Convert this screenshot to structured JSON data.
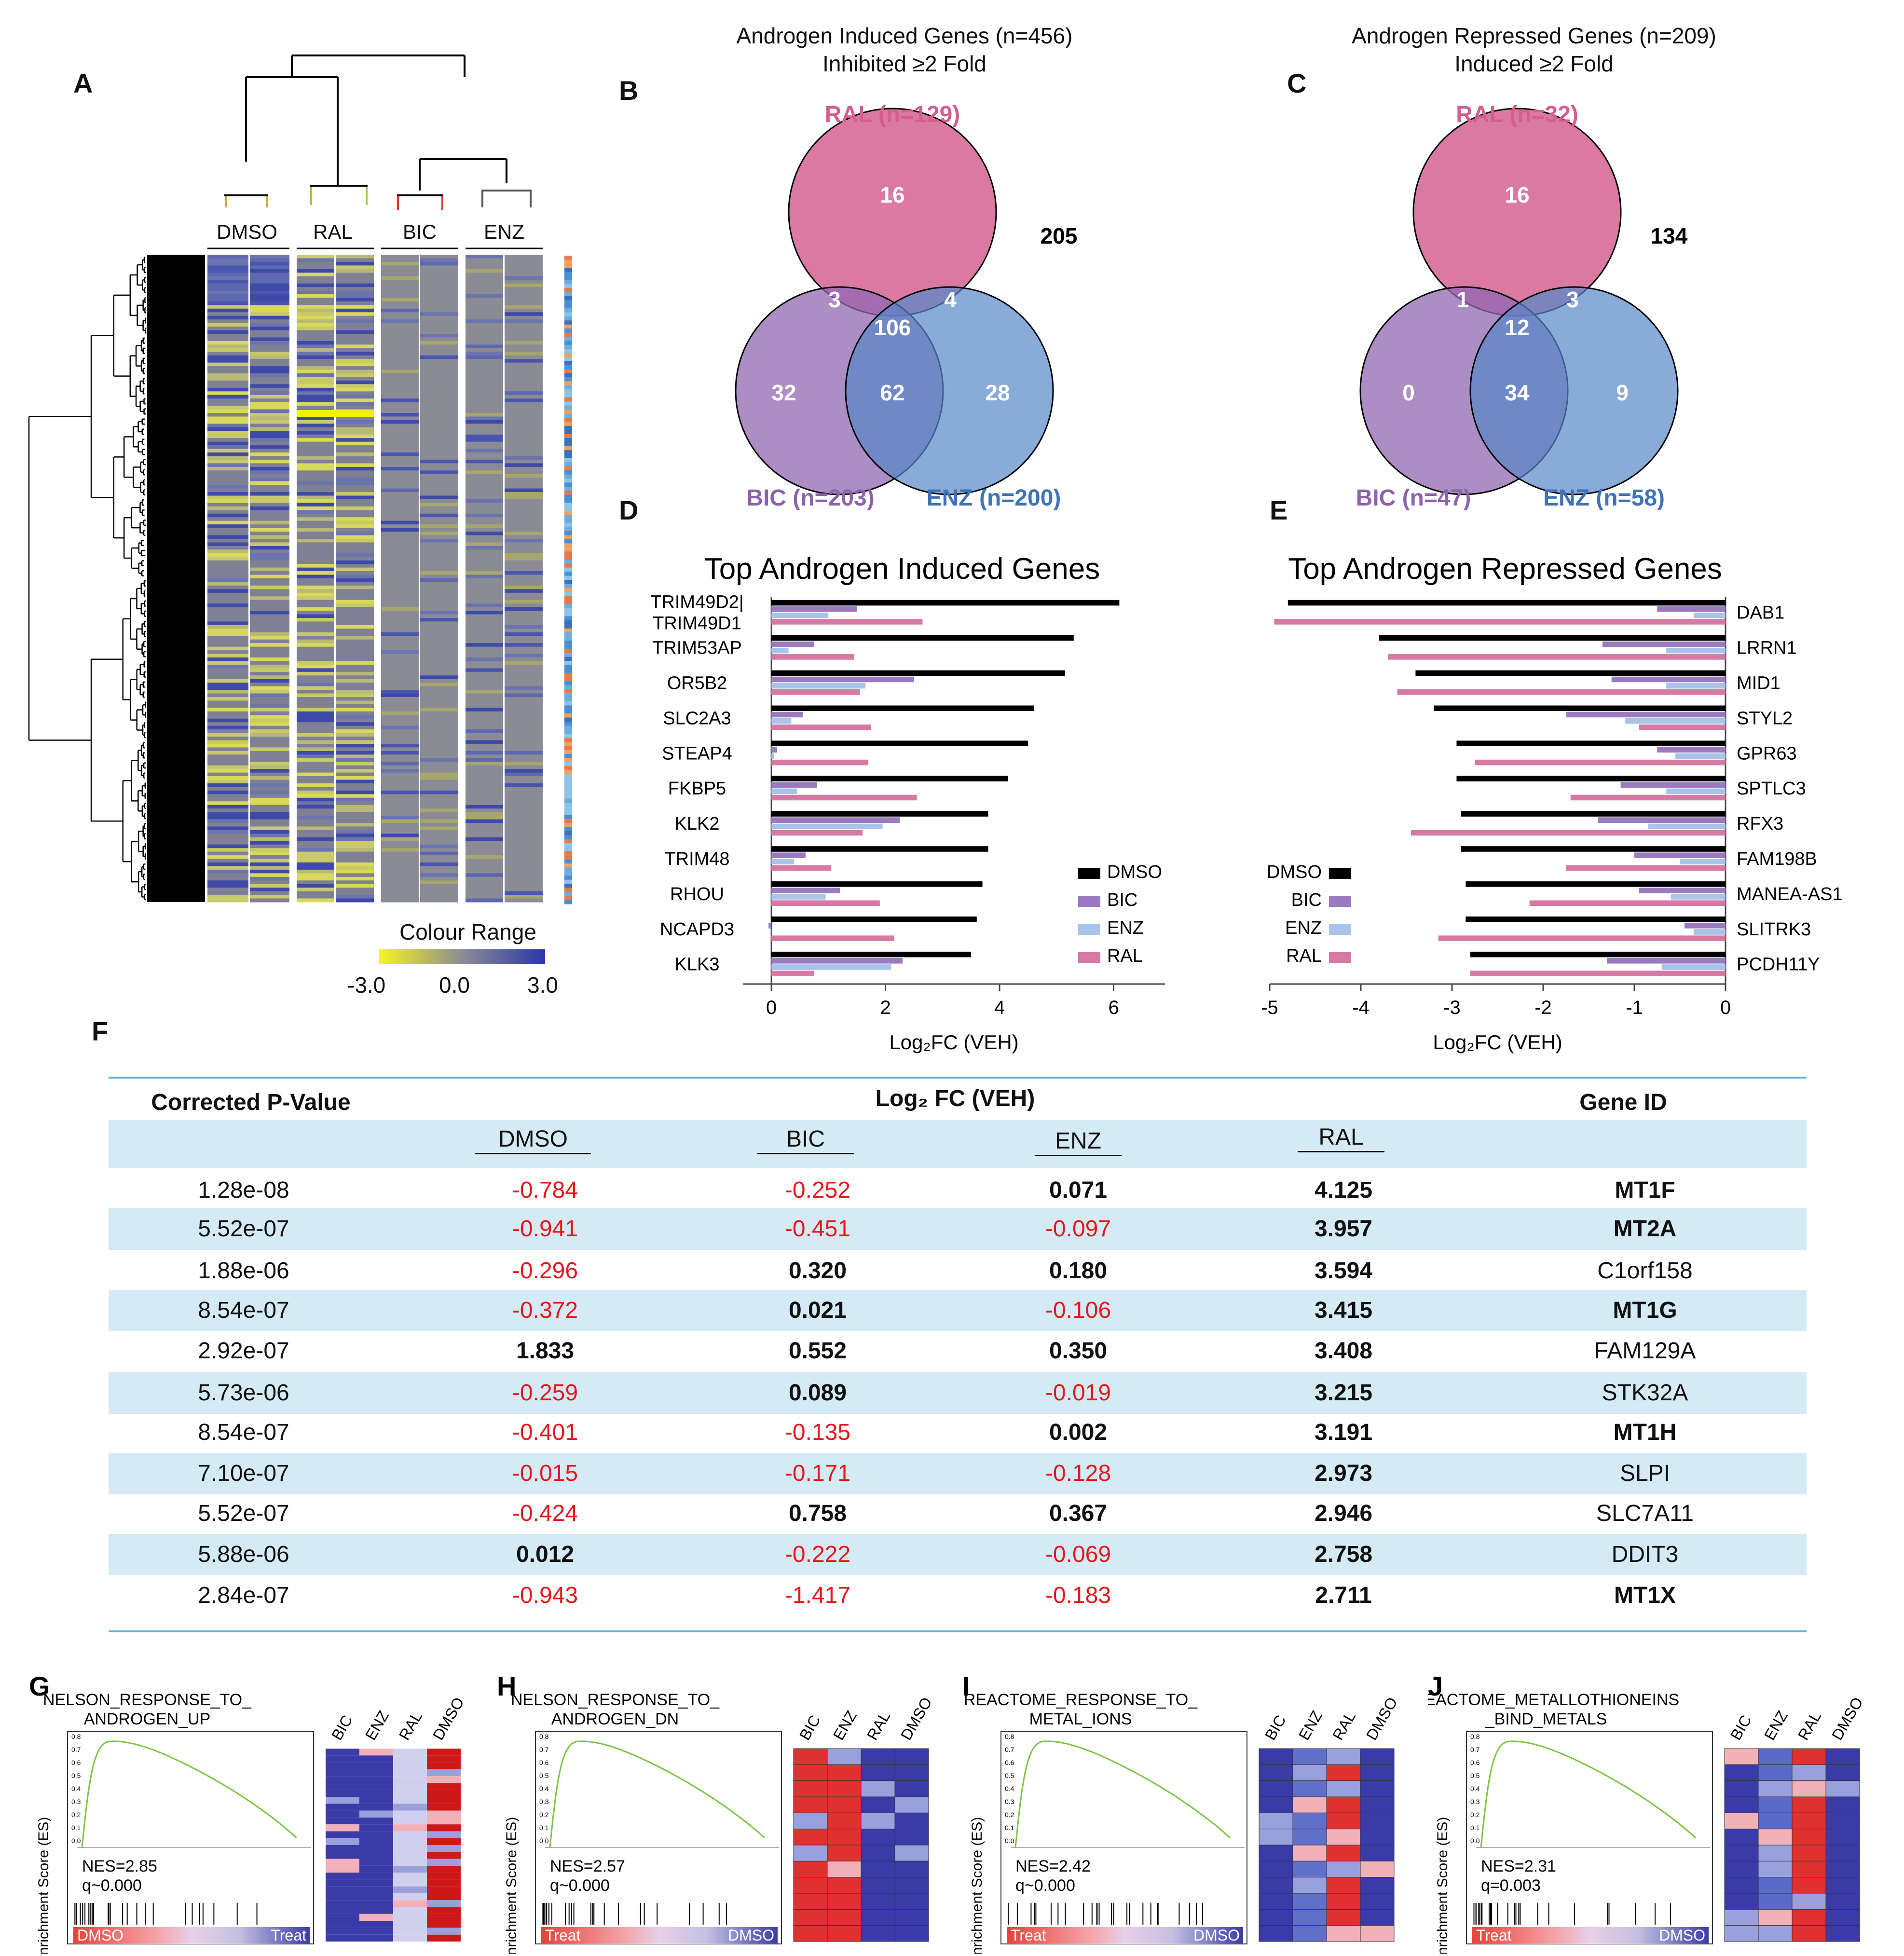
{
  "panel_labels": {
    "a": "A",
    "b": "B",
    "c": "C",
    "d": "D",
    "e": "E",
    "f": "F",
    "g": "G",
    "h": "H",
    "i": "I",
    "j": "J"
  },
  "heatmap": {
    "groups": [
      "DMSO",
      "RAL",
      "BIC",
      "ENZ"
    ],
    "colour_range_title": "Colour Range",
    "colour_range_min": "-3.0",
    "colour_range_mid": "0.0",
    "colour_range_max": "3.0",
    "colours": {
      "low": "#f5f522",
      "mid": "#8c8c96",
      "high": "#2b37a6"
    }
  },
  "venn_b": {
    "title_line1": "Androgen Induced Genes (n=456)",
    "title_line2": "Inhibited ≥2 Fold",
    "ral_label": "RAL (n=129)",
    "bic_label": "BIC (n=203)",
    "enz_label": "ENZ (n=200)",
    "ral_only": "16",
    "bic_only": "32",
    "enz_only": "28",
    "ral_bic": "3",
    "ral_enz": "4",
    "bic_enz": "62",
    "all_three": "106",
    "outside": "205"
  },
  "venn_c": {
    "title_line1": "Androgen Repressed Genes (n=209)",
    "title_line2": "Induced ≥2 Fold",
    "ral_label": "RAL (n=32)",
    "bic_label": "BIC (n=47)",
    "enz_label": "ENZ (n=58)",
    "ral_only": "16",
    "bic_only": "0",
    "enz_only": "9",
    "ral_bic": "1",
    "ral_enz": "3",
    "bic_enz": "34",
    "all_three": "12",
    "outside": "134"
  },
  "venn_colors": {
    "ral": "#d65e8f",
    "bic": "#8d63ad",
    "enz": "#4f82c4"
  },
  "chart_data": [
    {
      "type": "bar",
      "orientation": "horizontal",
      "title": "Top Androgen Induced Genes",
      "xlabel": "Log₂FC (VEH)",
      "xlim": [
        -0.5,
        6.9
      ],
      "xticks": [
        "0",
        "2",
        "4",
        "6"
      ],
      "categories": [
        "TRIM49D2|\nTRIM49D1",
        "TRIM53AP",
        "OR5B2",
        "SLC2A3",
        "STEAP4",
        "FKBP5",
        "KLK2",
        "TRIM48",
        "RHOU",
        "NCAPD3",
        "KLK3"
      ],
      "category_lines": [
        [
          "TRIM49D2|",
          "TRIM49D1"
        ],
        [
          "TRIM53AP"
        ],
        [
          "OR5B2"
        ],
        [
          "SLC2A3"
        ],
        [
          "STEAP4"
        ],
        [
          "FKBP5"
        ],
        [
          "KLK2"
        ],
        [
          "TRIM48"
        ],
        [
          "RHOU"
        ],
        [
          "NCAPD3"
        ],
        [
          "KLK3"
        ]
      ],
      "series": [
        {
          "name": "DMSO",
          "color": "#000000",
          "values": [
            6.1,
            5.3,
            5.15,
            4.6,
            4.5,
            4.15,
            3.8,
            3.8,
            3.7,
            3.6,
            3.5
          ]
        },
        {
          "name": "BIC",
          "color": "#9b7bc0",
          "values": [
            1.5,
            0.75,
            2.5,
            0.55,
            0.1,
            0.8,
            2.25,
            0.6,
            1.2,
            -0.05,
            2.3
          ]
        },
        {
          "name": "ENZ",
          "color": "#a9c4e8",
          "values": [
            1.0,
            0.3,
            1.65,
            0.35,
            0.05,
            0.45,
            1.95,
            0.4,
            0.95,
            -0.02,
            2.1
          ]
        },
        {
          "name": "RAL",
          "color": "#d77aa3",
          "values": [
            2.65,
            1.45,
            1.55,
            1.75,
            1.7,
            2.55,
            1.6,
            1.05,
            1.9,
            2.15,
            0.75
          ]
        }
      ],
      "legend": [
        "DMSO",
        "BIC",
        "ENZ",
        "RAL"
      ]
    },
    {
      "type": "bar",
      "orientation": "horizontal",
      "title": "Top Androgen Repressed Genes",
      "xlabel": "Log₂FC (VEH)",
      "xlim": [
        -5,
        0
      ],
      "xticks": [
        "-5",
        "-4",
        "-3",
        "-2",
        "-1",
        "0"
      ],
      "categories": [
        "DAB1",
        "LRRN1",
        "MID1",
        "STYL2",
        "GPR63",
        "SPTLC3",
        "RFX3",
        "FAM198B",
        "MANEA-AS1",
        "SLITRK3",
        "PCDH11Y"
      ],
      "series": [
        {
          "name": "DMSO",
          "color": "#000000",
          "values": [
            -4.8,
            -3.8,
            -3.4,
            -3.2,
            -2.95,
            -2.95,
            -2.9,
            -2.9,
            -2.85,
            -2.85,
            -2.8
          ]
        },
        {
          "name": "BIC",
          "color": "#9b7bc0",
          "values": [
            -0.75,
            -1.35,
            -1.25,
            -1.75,
            -0.75,
            -1.15,
            -1.4,
            -1.0,
            -0.95,
            -0.45,
            -1.3
          ]
        },
        {
          "name": "ENZ",
          "color": "#a9c4e8",
          "values": [
            -0.35,
            -0.65,
            -0.65,
            -1.1,
            -0.55,
            -0.65,
            -0.85,
            -0.5,
            -0.6,
            -0.35,
            -0.7
          ]
        },
        {
          "name": "RAL",
          "color": "#d77aa3",
          "values": [
            -4.95,
            -3.7,
            -3.6,
            -0.95,
            -2.75,
            -1.7,
            -3.45,
            -1.75,
            -2.15,
            -3.15,
            -2.8
          ]
        }
      ],
      "legend": [
        "DMSO",
        "BIC",
        "ENZ",
        "RAL"
      ]
    }
  ],
  "table_f": {
    "col_pvalue": "Corrected P-Value",
    "col_log2fc": "Log₂ FC (VEH)",
    "col_geneid": "Gene ID",
    "sub_dmso": "DMSO",
    "sub_bic": "BIC",
    "sub_enz": "ENZ",
    "sub_ral": "RAL",
    "rows": [
      {
        "p": "1.28e-08",
        "dmso": "-0.784",
        "bic": "-0.252",
        "enz": "0.071",
        "ral": "4.125",
        "gene": "MT1F"
      },
      {
        "p": "5.52e-07",
        "dmso": "-0.941",
        "bic": "-0.451",
        "enz": "-0.097",
        "ral": "3.957",
        "gene": "MT2A"
      },
      {
        "p": "1.88e-06",
        "dmso": "-0.296",
        "bic": "0.320",
        "enz": "0.180",
        "ral": "3.594",
        "gene": "C1orf158"
      },
      {
        "p": "8.54e-07",
        "dmso": "-0.372",
        "bic": "0.021",
        "enz": "-0.106",
        "ral": "3.415",
        "gene": "MT1G"
      },
      {
        "p": "2.92e-07",
        "dmso": "1.833",
        "bic": "0.552",
        "enz": "0.350",
        "ral": "3.408",
        "gene": "FAM129A"
      },
      {
        "p": "5.73e-06",
        "dmso": "-0.259",
        "bic": "0.089",
        "enz": "-0.019",
        "ral": "3.215",
        "gene": "STK32A"
      },
      {
        "p": "8.54e-07",
        "dmso": "-0.401",
        "bic": "-0.135",
        "enz": "0.002",
        "ral": "3.191",
        "gene": "MT1H"
      },
      {
        "p": "7.10e-07",
        "dmso": "-0.015",
        "bic": "-0.171",
        "enz": "-0.128",
        "ral": "2.973",
        "gene": "SLPI"
      },
      {
        "p": "5.52e-07",
        "dmso": "-0.424",
        "bic": "0.758",
        "enz": "0.367",
        "ral": "2.946",
        "gene": "SLC7A11"
      },
      {
        "p": "5.88e-06",
        "dmso": "0.012",
        "bic": "-0.222",
        "enz": "-0.069",
        "ral": "2.758",
        "gene": "DDIT3"
      },
      {
        "p": "2.84e-07",
        "dmso": "-0.943",
        "bic": "-1.417",
        "enz": "-0.183",
        "ral": "2.711",
        "gene": "MT1X"
      }
    ],
    "bold_genes": [
      "MT1F",
      "MT2A",
      "MT1G",
      "MT1H",
      "MT1X"
    ]
  },
  "gsea": [
    {
      "letter": "G",
      "title1": "NELSON_RESPONSE_TO_",
      "title2": "ANDROGEN_UP",
      "nes": "NES=2.85",
      "q": "q~0.000",
      "left": "DMSO",
      "right": "Treat",
      "cols": [
        "BIC",
        "ENZ",
        "RAL",
        "DMSO"
      ],
      "ylabel": "Enrichment Score (ES)"
    },
    {
      "letter": "H",
      "title1": "NELSON_RESPONSE_TO_",
      "title2": "ANDROGEN_DN",
      "nes": "NES=2.57",
      "q": "q~0.000",
      "left": "Treat",
      "right": "DMSO",
      "cols": [
        "BIC",
        "ENZ",
        "RAL",
        "DMSO"
      ],
      "ylabel": "Enrichment Score (ES)"
    },
    {
      "letter": "I",
      "title1": "REACTOME_RESPONSE_TO_",
      "title2": "METAL_IONS",
      "nes": "NES=2.42",
      "q": "q~0.000",
      "left": "Treat",
      "right": "DMSO",
      "cols": [
        "BIC",
        "ENZ",
        "RAL",
        "DMSO"
      ],
      "ylabel": "Enrichment Score (ES)"
    },
    {
      "letter": "J",
      "title1": "REACTOME_METALLOTHIONEINS",
      "title2": "_BIND_METALS",
      "nes": "NES=2.31",
      "q": "q=0.003",
      "left": "Treat",
      "right": "DMSO",
      "cols": [
        "BIC",
        "ENZ",
        "RAL",
        "DMSO"
      ],
      "ylabel": "Enrichment Score (ES)"
    }
  ]
}
